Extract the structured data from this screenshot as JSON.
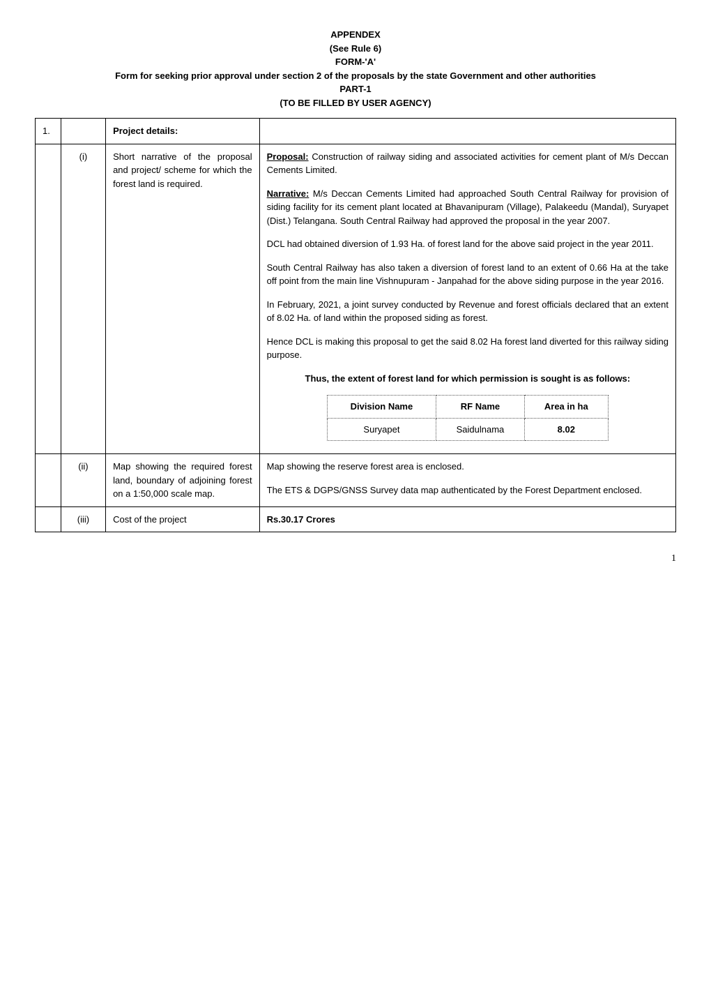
{
  "header": {
    "line1": "APPENDEX",
    "line2": "(See Rule 6)",
    "line3": "FORM-'A'",
    "line4": "Form for seeking prior approval under section 2 of the proposals by the state Government and other authorities",
    "line5": "PART-1",
    "line6": "(TO BE FILLED BY USER AGENCY)"
  },
  "section": {
    "number": "1.",
    "title": "Project details:"
  },
  "rows": [
    {
      "sub": "(i)",
      "label": "Short narrative of the proposal and project/ scheme for which the forest land is required.",
      "proposal_prefix": "Proposal:",
      "proposal_text": " Construction of railway siding and associated activities for cement plant of M/s Deccan Cements Limited.",
      "narrative_prefix": "Narrative:",
      "narrative_text": " M/s Deccan Cements Limited had approached South Central Railway for provision of siding facility for its cement plant located at Bhavanipuram (Village), Palakeedu (Mandal), Suryapet (Dist.) Telangana. South Central Railway had approved the proposal in the year 2007.",
      "para3": "DCL had obtained diversion of 1.93 Ha. of forest land for the above said project in the year 2011.",
      "para4": "South Central Railway has also taken a diversion of forest land to an extent of 0.66 Ha at the take off point from the main line Vishnupuram - Janpahad for the above siding purpose in the year 2016.",
      "para5": "In February, 2021, a joint survey conducted by Revenue and forest officials declared that an extent of 8.02 Ha. of land within the proposed siding as forest.",
      "para6": "Hence DCL is making this proposal to get the said 8.02 Ha forest land diverted for this railway siding purpose.",
      "para7": "Thus, the extent of forest land for which permission is sought is as follows:",
      "inner_table": {
        "headers": [
          "Division Name",
          "RF Name",
          "Area in ha"
        ],
        "row": [
          "Suryapet",
          "Saidulnama",
          "8.02"
        ]
      }
    },
    {
      "sub": "(ii)",
      "label": "Map showing the required forest land, boundary of adjoining forest on a 1:50,000 scale map.",
      "para1": "Map showing the reserve forest area is enclosed.",
      "para2": "The ETS & DGPS/GNSS Survey data map authenticated by the Forest Department enclosed."
    },
    {
      "sub": "(iii)",
      "label": "Cost of the project",
      "content": "Rs.30.17 Crores"
    }
  ],
  "page_number": "1",
  "style": {
    "body_fontsize": 13,
    "header_fontsize": 13,
    "border_color": "#000000",
    "dotted_border_color": "#555555",
    "background_color": "#ffffff",
    "text_color": "#000000"
  }
}
